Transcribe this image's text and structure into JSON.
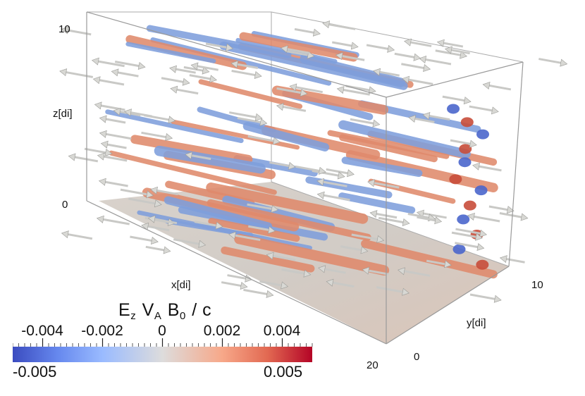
{
  "axes": {
    "z_label": "z[di]",
    "z_tick_top": "10",
    "z_tick_bottom": "0",
    "x_label": "x[di]",
    "x_tick_end": "20",
    "y_label": "y[di]",
    "y_tick_start": "0",
    "y_tick_end": "10"
  },
  "colorbar": {
    "field": "E",
    "field_sub": "z",
    "scale": "V",
    "scale_sub": "A",
    "ref": "B",
    "ref_sub": "0",
    "divisor": "/ c",
    "tick_labels": [
      "-0.004",
      "-0.002",
      "0",
      "0.002",
      "0.004"
    ],
    "tick_values": [
      -0.004,
      -0.002,
      0,
      0.002,
      0.004
    ],
    "min_label": "-0.005",
    "max_label": "0.005",
    "min": -0.005,
    "max": 0.005,
    "colormap": [
      "#3b4cc0",
      "#9abbff",
      "#dddcdc",
      "#f7a889",
      "#b40426"
    ]
  },
  "scene": {
    "positive_color": "#e08a6c",
    "negative_color": "#7f9fdc",
    "arrow_color": "#c9c9c6",
    "floor_color": "#d4cbc3"
  }
}
